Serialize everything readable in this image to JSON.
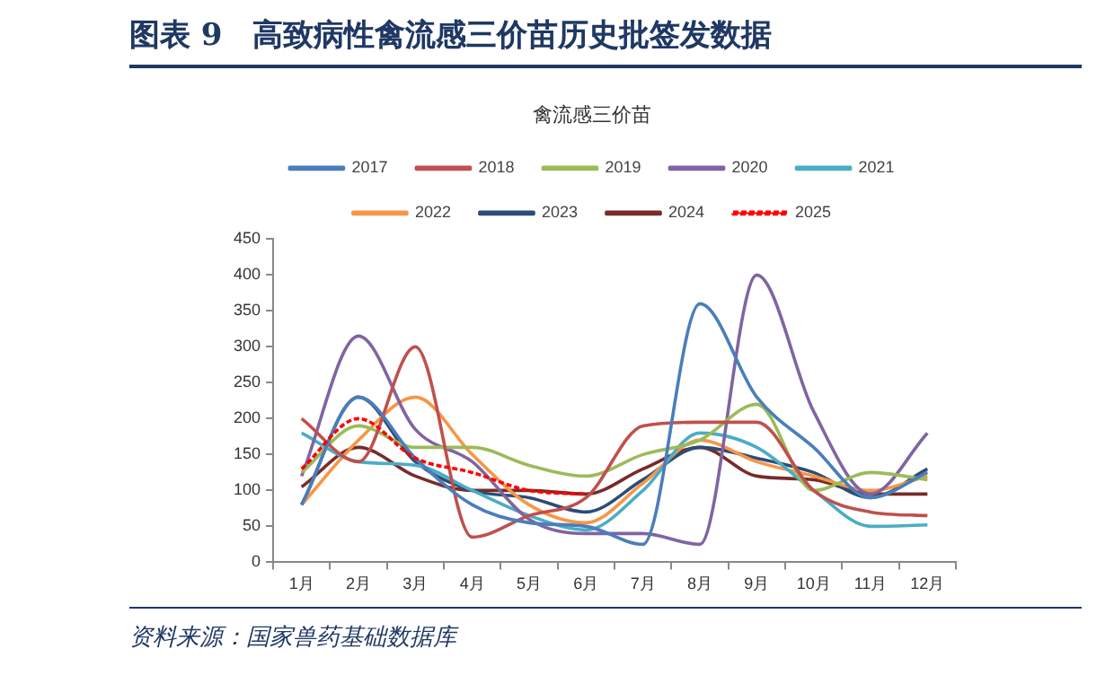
{
  "chart_data": {
    "type": "line",
    "title": "图表 9　高致病性禽流感三价苗历史批签发数据",
    "subtitle": "禽流感三价苗",
    "categories": [
      "1月",
      "2月",
      "3月",
      "4月",
      "5月",
      "6月",
      "7月",
      "8月",
      "9月",
      "10月",
      "11月",
      "12月"
    ],
    "ylim": [
      0,
      450
    ],
    "yticks": [
      0,
      50,
      100,
      150,
      200,
      250,
      300,
      350,
      400,
      450
    ],
    "grid": false,
    "legend": "top",
    "line_style": "solid",
    "marker": "none",
    "series": [
      {
        "name": "2017",
        "color": "#4a7ebb",
        "values": [
          80,
          230,
          145,
          80,
          55,
          50,
          25,
          360,
          230,
          160,
          90,
          125
        ]
      },
      {
        "name": "2018",
        "color": "#c0504d",
        "values": [
          200,
          140,
          300,
          35,
          65,
          90,
          190,
          195,
          195,
          100,
          70,
          65
        ]
      },
      {
        "name": "2019",
        "color": "#9bbb59",
        "values": [
          125,
          190,
          160,
          160,
          135,
          120,
          150,
          170,
          220,
          100,
          125,
          115
        ]
      },
      {
        "name": "2020",
        "color": "#8064a2",
        "values": [
          120,
          315,
          185,
          140,
          60,
          40,
          40,
          25,
          400,
          210,
          95,
          180
        ]
      },
      {
        "name": "2021",
        "color": "#4bacc6",
        "values": [
          180,
          140,
          135,
          100,
          65,
          45,
          100,
          180,
          160,
          100,
          50,
          52
        ]
      },
      {
        "name": "2022",
        "color": "#f79646",
        "values": [
          80,
          170,
          230,
          150,
          80,
          55,
          110,
          170,
          140,
          120,
          100,
          120
        ]
      },
      {
        "name": "2023",
        "color": "#2c4d75",
        "values": [
          80,
          230,
          140,
          100,
          90,
          70,
          115,
          160,
          145,
          125,
          90,
          130
        ]
      },
      {
        "name": "2024",
        "color": "#772c2a",
        "values": [
          105,
          160,
          120,
          100,
          100,
          95,
          130,
          160,
          120,
          115,
          95,
          95
        ]
      },
      {
        "name": "2025",
        "color": "#ff0000",
        "line_style": "dashed",
        "values": [
          130,
          200,
          145,
          125,
          100,
          95,
          null,
          null,
          null,
          null,
          null,
          null
        ]
      }
    ],
    "annotations": [
      "资料来源：国家兽药基础数据库"
    ]
  }
}
